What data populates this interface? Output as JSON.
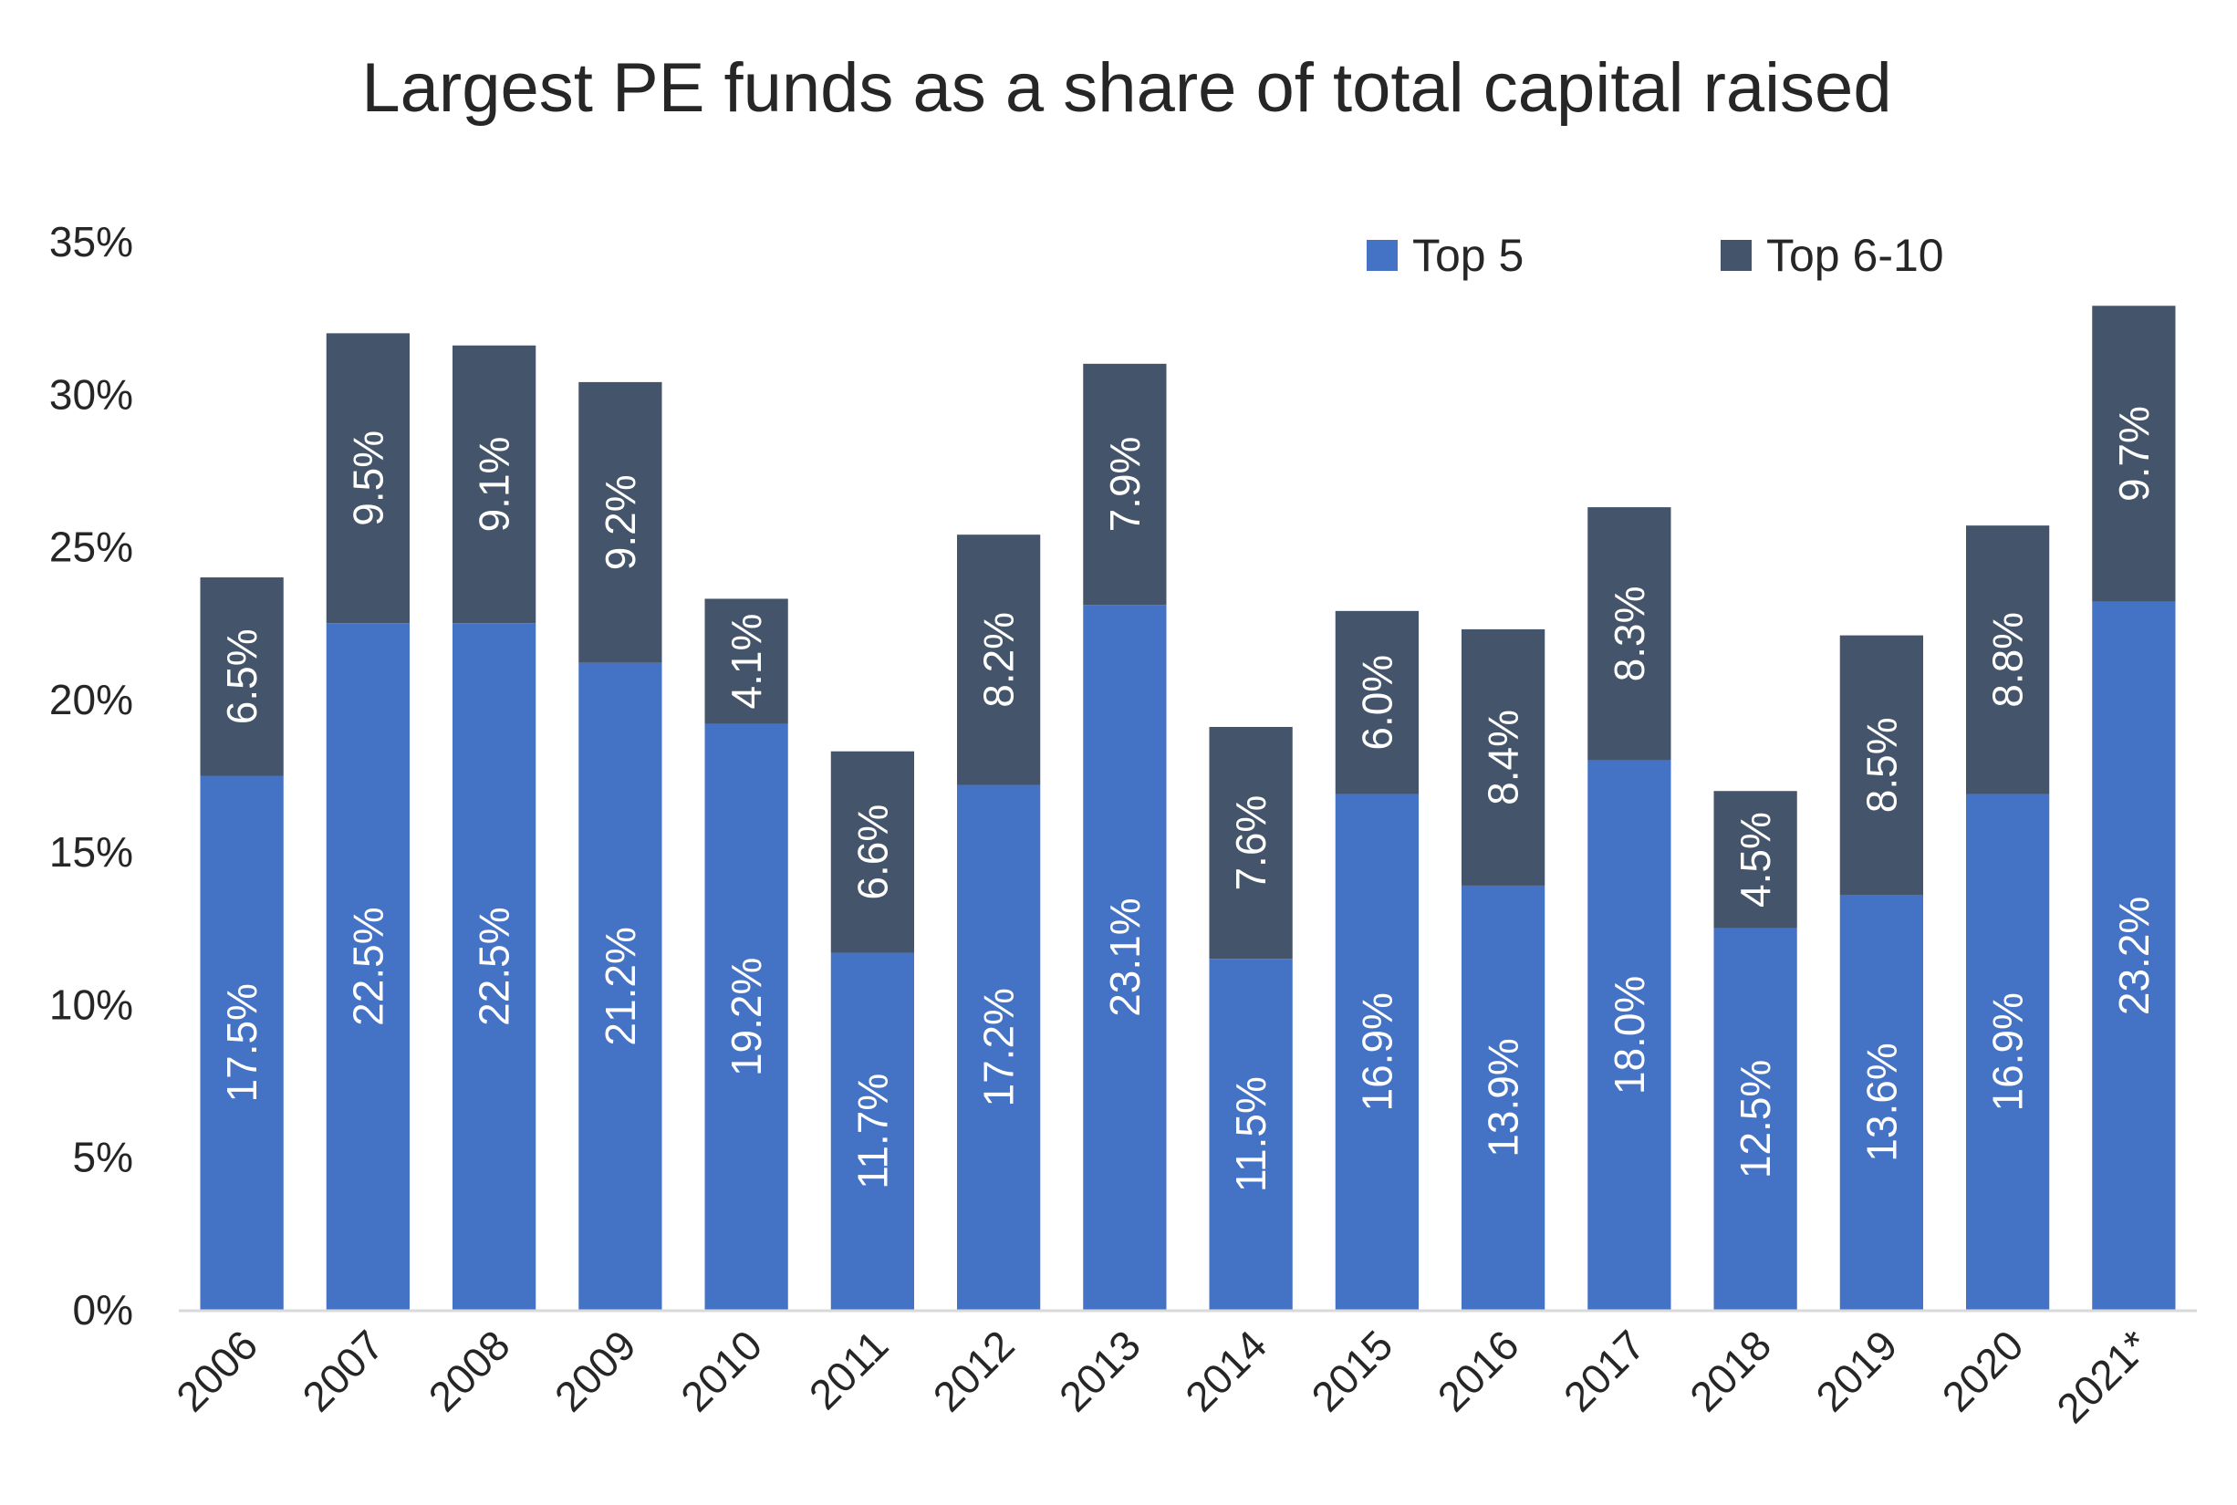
{
  "chart_data": {
    "type": "bar",
    "stacked": true,
    "title": "Largest PE funds as a share of total capital raised",
    "xlabel": "",
    "ylabel": "",
    "categories": [
      "2006",
      "2007",
      "2008",
      "2009",
      "2010",
      "2011",
      "2012",
      "2013",
      "2014",
      "2015",
      "2016",
      "2017",
      "2018",
      "2019",
      "2020",
      "2021*"
    ],
    "series": [
      {
        "name": "Top 5",
        "color": "#4472C4",
        "values": [
          17.5,
          22.5,
          22.5,
          21.2,
          19.2,
          11.7,
          17.2,
          23.1,
          11.5,
          16.9,
          13.9,
          18.0,
          12.5,
          13.6,
          16.9,
          23.2
        ],
        "labels": [
          "17.5%",
          "22.5%",
          "22.5%",
          "21.2%",
          "19.2%",
          "11.7%",
          "17.2%",
          "23.1%",
          "11.5%",
          "16.9%",
          "13.9%",
          "18.0%",
          "12.5%",
          "13.6%",
          "16.9%",
          "23.2%"
        ]
      },
      {
        "name": "Top 6-10",
        "color": "#44546A",
        "values": [
          6.5,
          9.5,
          9.1,
          9.2,
          4.1,
          6.6,
          8.2,
          7.9,
          7.6,
          6.0,
          8.4,
          8.3,
          4.5,
          8.5,
          8.8,
          9.7
        ],
        "labels": [
          "6.5%",
          "9.5%",
          "9.1%",
          "9.2%",
          "4.1%",
          "6.6%",
          "8.2%",
          "7.9%",
          "7.6%",
          "6.0%",
          "8.4%",
          "8.3%",
          "4.5%",
          "8.5%",
          "8.8%",
          "9.7%"
        ]
      }
    ],
    "ylim": [
      0,
      35
    ],
    "yticks": [
      0,
      5,
      10,
      15,
      20,
      25,
      30,
      35
    ],
    "ytick_labels": [
      "0%",
      "5%",
      "10%",
      "15%",
      "20%",
      "25%",
      "30%",
      "35%"
    ],
    "grid": false,
    "legend_position": "top-right",
    "axis_color": "#D9D9D9"
  }
}
